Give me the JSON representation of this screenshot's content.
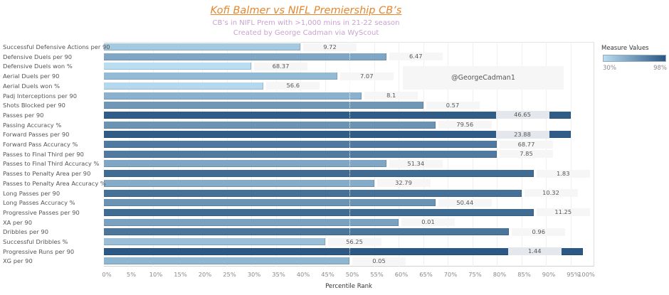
{
  "header": {
    "title": "Kofi Balmer vs NIFL Premiership CB’s",
    "subtitle1": "CB’s in NIFL Prem with >1,000 mins in 21-22 season",
    "subtitle2": "Created by George Cadman via WyScout"
  },
  "watermark": "@GeorgeCadman1",
  "legend": {
    "title": "Measure Values",
    "min_label": "30%",
    "max_label": "98%",
    "color_low": "#b9ddf1",
    "color_high": "#2a5783"
  },
  "chart_data": {
    "type": "bar",
    "orientation": "horizontal",
    "title": "Kofi Balmer vs NIFL Premiership CB’s",
    "xlabel": "Percentile Rank",
    "ylabel": "",
    "xlim": [
      0,
      100
    ],
    "x_ticks": [
      "0%",
      "5%",
      "10%",
      "15%",
      "20%",
      "25%",
      "30%",
      "35%",
      "40%",
      "45%",
      "50%",
      "55%",
      "60%",
      "65%",
      "70%",
      "75%",
      "80%",
      "85%",
      "90%",
      "95%",
      "100%"
    ],
    "reference_line": 50,
    "grid": true,
    "legend_position": "top-right",
    "color_scale": {
      "min": 30,
      "max": 98
    },
    "categories": [
      "Successful Defensive Actions per 90",
      "Defensive Duels per 90",
      "Defensive Duels won %",
      "Aerial Duels per 90",
      "Aerial Duels won %",
      "Padj Interceptions per 90",
      "Shots Blocked per 90",
      "Passes per 90",
      "Passing Accuracy %",
      "Forward Passes per 90",
      "Forward Pass Accuracy %",
      "Passes to Final Third per 90",
      "Passes to Final Third Accuracy %",
      "Passes to Penalty Area per 90",
      "Passes to Penalty Area Accuracy %",
      "Long Passes per 90",
      "Long Passes Accuracy %",
      "Progressive Passes per 90",
      "XA per 90",
      "Dribbles per 90",
      "Successful Dribbles %",
      "Progressive Runs per 90",
      "XG per 90"
    ],
    "percentile_rank": [
      40,
      57.5,
      30,
      47.5,
      32.5,
      52.5,
      65,
      95,
      67.5,
      95,
      80,
      80,
      57.5,
      87.5,
      55,
      85,
      67.5,
      87.5,
      60,
      82.5,
      45,
      97.5,
      50
    ],
    "value_labels": [
      "9.72",
      "6.47",
      "68.37",
      "7.07",
      "56.6",
      "8.1",
      "0.57",
      "46.65",
      "79.56",
      "23.88",
      "68.77",
      "7.85",
      "51.34",
      "1.83",
      "32.79",
      "10.32",
      "50.44",
      "11.25",
      "0.01",
      "0.96",
      "56.25",
      "1.44",
      "0.05"
    ]
  }
}
